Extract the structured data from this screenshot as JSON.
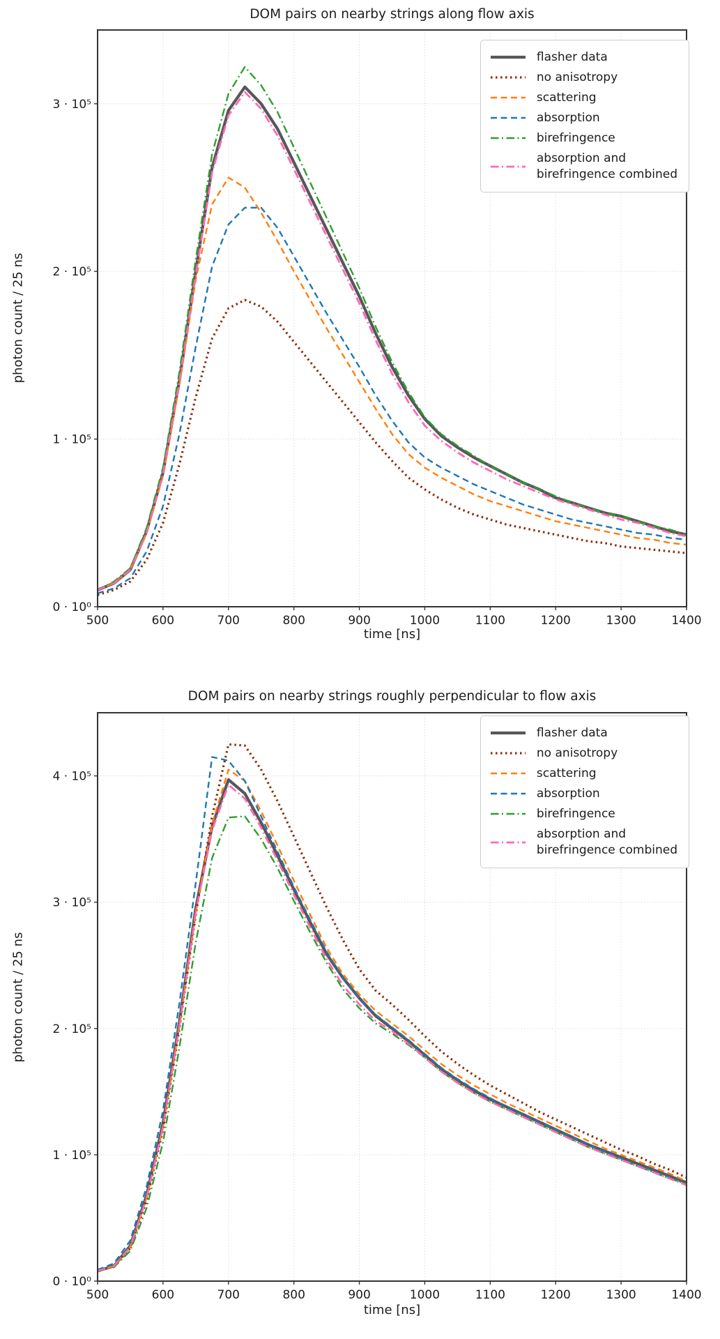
{
  "figure": {
    "background": "#ffffff",
    "text_color": "#1c1c1c",
    "grid_color": "#dcdcdc",
    "spine_color": "#333333"
  },
  "chart_data": [
    {
      "type": "line",
      "title": "DOM pairs on nearby strings along flow axis",
      "xlabel": "time [ns]",
      "ylabel": "photon count / 25 ns",
      "xlim": [
        500,
        1400
      ],
      "xticks": [
        500,
        600,
        700,
        800,
        900,
        1000,
        1100,
        1200,
        1300,
        1400
      ],
      "ylim": [
        0,
        344000
      ],
      "yticks": [
        {
          "value": 0,
          "label": "0 · 10⁰"
        },
        {
          "value": 100000,
          "label": "1 · 10⁵"
        },
        {
          "value": 200000,
          "label": "2 · 10⁵"
        },
        {
          "value": 300000,
          "label": "3 · 10⁵"
        }
      ],
      "grid": true,
      "legend_position": "upper right",
      "x": [
        500,
        525,
        550,
        575,
        600,
        625,
        650,
        675,
        700,
        725,
        750,
        775,
        800,
        825,
        850,
        875,
        900,
        925,
        950,
        975,
        1000,
        1025,
        1050,
        1075,
        1100,
        1125,
        1150,
        1175,
        1200,
        1225,
        1250,
        1275,
        1300,
        1325,
        1350,
        1375,
        1400
      ],
      "series": [
        {
          "name": "flasher data",
          "color": "#57575a",
          "style": "solid",
          "width": 4.2,
          "values": [
            10000,
            14000,
            22000,
            45000,
            80000,
            135000,
            200000,
            262000,
            296000,
            310000,
            300000,
            285000,
            265000,
            245000,
            225000,
            205000,
            185000,
            163000,
            143000,
            126000,
            112000,
            102000,
            95000,
            89000,
            84000,
            79000,
            74000,
            70000,
            65000,
            62000,
            59000,
            56000,
            54000,
            51000,
            48000,
            45000,
            43000
          ]
        },
        {
          "name": "no anisotropy",
          "color": "#8c2d0a",
          "style": "dotted",
          "width": 3.2,
          "values": [
            7000,
            10000,
            15000,
            28000,
            50000,
            85000,
            125000,
            160000,
            178000,
            183000,
            179000,
            170000,
            158000,
            146000,
            134000,
            122000,
            110000,
            98000,
            87000,
            77000,
            70000,
            64000,
            59000,
            55000,
            52000,
            49000,
            47000,
            45000,
            43000,
            41000,
            39000,
            38000,
            36000,
            35000,
            34000,
            33000,
            32000
          ]
        },
        {
          "name": "scattering",
          "color": "#ff7f0e",
          "style": "dashed",
          "width": 2.4,
          "values": [
            10000,
            14000,
            22000,
            44000,
            78000,
            132000,
            195000,
            240000,
            256000,
            250000,
            235000,
            218000,
            200000,
            183000,
            166000,
            150000,
            134000,
            118000,
            103000,
            91000,
            83000,
            77000,
            72000,
            67000,
            63000,
            60000,
            57000,
            54000,
            51000,
            49000,
            47000,
            45000,
            43000,
            41000,
            40000,
            38000,
            37000
          ]
        },
        {
          "name": "absorption",
          "color": "#1f77b4",
          "style": "dashed",
          "width": 2.4,
          "values": [
            8000,
            11000,
            17000,
            33000,
            60000,
            103000,
            155000,
            203000,
            228000,
            238000,
            238000,
            226000,
            209000,
            192000,
            175000,
            159000,
            143000,
            126000,
            111000,
            98000,
            89000,
            83000,
            78000,
            73000,
            69000,
            65000,
            61000,
            58000,
            55000,
            52000,
            50000,
            48000,
            46000,
            44000,
            43000,
            41000,
            40000
          ]
        },
        {
          "name": "birefringence",
          "color": "#2ca02c",
          "style": "dashdot",
          "width": 2.4,
          "values": [
            10000,
            15000,
            23000,
            47000,
            83000,
            140000,
            207000,
            270000,
            306000,
            322000,
            311000,
            295000,
            274000,
            253000,
            232000,
            211000,
            190000,
            167000,
            146000,
            128000,
            113000,
            103000,
            96000,
            90000,
            84000,
            79000,
            74000,
            70000,
            66000,
            62000,
            59000,
            56000,
            54000,
            51000,
            48000,
            46000,
            43000
          ]
        },
        {
          "name": "absorption and birefringence combined",
          "legend_label": "absorption and\nbirefringence combined",
          "color": "#ff69b4",
          "style": "dashdot",
          "width": 2.8,
          "values": [
            10000,
            14000,
            22000,
            44000,
            79000,
            134000,
            198000,
            259000,
            293000,
            307000,
            297000,
            281000,
            261000,
            241000,
            221000,
            201000,
            181000,
            159000,
            139000,
            122000,
            108000,
            99000,
            92000,
            86000,
            81000,
            76000,
            72000,
            68000,
            64000,
            61000,
            58000,
            55000,
            52000,
            50000,
            47000,
            44000,
            42000
          ]
        }
      ]
    },
    {
      "type": "line",
      "title": "DOM pairs on nearby strings roughly perpendicular to flow axis",
      "xlabel": "time [ns]",
      "ylabel": "photon count / 25 ns",
      "xlim": [
        500,
        1400
      ],
      "xticks": [
        500,
        600,
        700,
        800,
        900,
        1000,
        1100,
        1200,
        1300,
        1400
      ],
      "ylim": [
        0,
        450000
      ],
      "yticks": [
        {
          "value": 0,
          "label": "0 · 10⁰"
        },
        {
          "value": 100000,
          "label": "1 · 10⁵"
        },
        {
          "value": 200000,
          "label": "2 · 10⁵"
        },
        {
          "value": 300000,
          "label": "3 · 10⁵"
        },
        {
          "value": 400000,
          "label": "4 · 10⁵"
        }
      ],
      "grid": true,
      "legend_position": "upper right",
      "x": [
        500,
        525,
        550,
        575,
        600,
        625,
        650,
        675,
        700,
        725,
        750,
        775,
        800,
        825,
        850,
        875,
        900,
        925,
        950,
        975,
        1000,
        1025,
        1050,
        1075,
        1100,
        1125,
        1150,
        1175,
        1200,
        1225,
        1250,
        1275,
        1300,
        1325,
        1350,
        1375,
        1400
      ],
      "series": [
        {
          "name": "flasher data",
          "color": "#57575a",
          "style": "solid",
          "width": 4.2,
          "values": [
            8000,
            12000,
            28000,
            68000,
            125000,
            205000,
            295000,
            360000,
            397000,
            386000,
            363000,
            337000,
            310000,
            284000,
            259000,
            240000,
            224000,
            210000,
            200000,
            190000,
            179000,
            168000,
            159000,
            151000,
            144000,
            138000,
            132000,
            126000,
            120000,
            114000,
            108000,
            103000,
            98000,
            93000,
            88000,
            83000,
            78000
          ]
        },
        {
          "name": "no anisotropy",
          "color": "#8c2d0a",
          "style": "dotted",
          "width": 3.2,
          "values": [
            8000,
            12000,
            26000,
            64000,
            120000,
            200000,
            290000,
            368000,
            425000,
            424000,
            405000,
            380000,
            352000,
            324000,
            296000,
            270000,
            247000,
            230000,
            219000,
            207000,
            194000,
            182000,
            172000,
            163000,
            155000,
            148000,
            141000,
            134000,
            128000,
            122000,
            116000,
            110000,
            104000,
            99000,
            93000,
            88000,
            82000
          ]
        },
        {
          "name": "scattering",
          "color": "#ff7f0e",
          "style": "dashed",
          "width": 2.4,
          "values": [
            8000,
            12000,
            27000,
            66000,
            122000,
            202000,
            292000,
            362000,
            405000,
            396000,
            372000,
            345000,
            317000,
            290000,
            264000,
            243000,
            227000,
            214000,
            204000,
            194000,
            183000,
            172000,
            163000,
            155000,
            148000,
            141000,
            135000,
            129000,
            123000,
            117000,
            111000,
            105000,
            100000,
            95000,
            90000,
            85000,
            79000
          ]
        },
        {
          "name": "absorption",
          "color": "#1f77b4",
          "style": "dashed",
          "width": 2.4,
          "values": [
            9000,
            14000,
            32000,
            75000,
            135000,
            220000,
            315000,
            415000,
            412000,
            396000,
            368000,
            340000,
            312000,
            286000,
            261000,
            240000,
            224000,
            211000,
            201000,
            191000,
            180000,
            169000,
            160000,
            152000,
            145000,
            138000,
            132000,
            126000,
            120000,
            114000,
            108000,
            103000,
            97000,
            92000,
            87000,
            82000,
            77000
          ]
        },
        {
          "name": "birefringence",
          "color": "#2ca02c",
          "style": "dashdot",
          "width": 2.4,
          "values": [
            8000,
            11000,
            24000,
            58000,
            110000,
            185000,
            268000,
            335000,
            367000,
            368000,
            350000,
            327000,
            301000,
            276000,
            252000,
            231000,
            216000,
            204000,
            196000,
            187000,
            177000,
            166000,
            157000,
            149000,
            142000,
            136000,
            130000,
            124000,
            118000,
            112000,
            106000,
            101000,
            96000,
            91000,
            86000,
            81000,
            77000
          ]
        },
        {
          "name": "absorption and birefringence combined",
          "legend_label": "absorption and\nbirefringence combined",
          "color": "#ff69b4",
          "style": "dashdot",
          "width": 2.8,
          "values": [
            8000,
            12000,
            27000,
            66000,
            122000,
            202000,
            292000,
            357000,
            393000,
            382000,
            359000,
            333000,
            306000,
            280000,
            255000,
            234000,
            219000,
            206000,
            198000,
            188000,
            177000,
            166000,
            157000,
            149000,
            142000,
            136000,
            130000,
            124000,
            118000,
            112000,
            106000,
            101000,
            96000,
            91000,
            86000,
            81000,
            76000
          ]
        }
      ]
    }
  ]
}
